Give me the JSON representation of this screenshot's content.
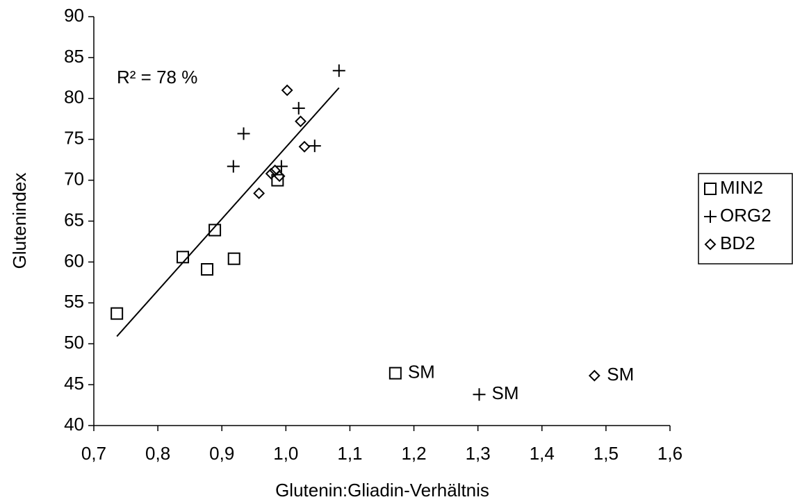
{
  "chart_data": {
    "type": "scatter",
    "xlabel": "Glutenin:Gliadin-Verhältnis",
    "ylabel": "Glutenindex",
    "annotation": "R² = 78 %",
    "xlim": [
      0.7,
      1.6
    ],
    "xticks": [
      {
        "value": 0.7,
        "label": "0,7"
      },
      {
        "value": 0.8,
        "label": "0,8"
      },
      {
        "value": 0.9,
        "label": "0,9"
      },
      {
        "value": 1.0,
        "label": "1,0"
      },
      {
        "value": 1.1,
        "label": "1,1"
      },
      {
        "value": 1.2,
        "label": "1,2"
      },
      {
        "value": 1.3,
        "label": "1,3"
      },
      {
        "value": 1.4,
        "label": "1,4"
      },
      {
        "value": 1.5,
        "label": "1,5"
      },
      {
        "value": 1.6,
        "label": "1,6"
      }
    ],
    "ylim": [
      40,
      90
    ],
    "yticks": [
      40,
      45,
      50,
      55,
      60,
      65,
      70,
      75,
      80,
      85,
      90
    ],
    "grid": false,
    "legend": "right",
    "series": [
      {
        "name": "MIN2",
        "color": "#000000",
        "marker": "square",
        "x": [
          0.736,
          0.839,
          0.877,
          0.889,
          0.919,
          0.987,
          1.171
        ],
        "values": [
          53.7,
          60.6,
          59.1,
          63.9,
          60.4,
          70.0,
          46.4
        ],
        "labels": [
          null,
          null,
          null,
          null,
          null,
          null,
          "SM"
        ]
      },
      {
        "name": "ORG2",
        "color": "#000000",
        "marker": "plus",
        "x": [
          0.918,
          0.934,
          0.993,
          1.02,
          1.045,
          1.083,
          1.302
        ],
        "values": [
          71.7,
          75.7,
          71.7,
          78.8,
          74.2,
          83.4,
          43.8
        ],
        "labels": [
          null,
          null,
          null,
          null,
          null,
          null,
          "SM"
        ]
      },
      {
        "name": "BD2",
        "color": "#000000",
        "marker": "diamond",
        "x": [
          0.958,
          0.977,
          0.983,
          0.99,
          1.002,
          1.023,
          1.029,
          1.482
        ],
        "values": [
          68.4,
          70.8,
          71.2,
          70.5,
          81.0,
          77.2,
          74.1,
          46.1
        ],
        "labels": [
          null,
          null,
          null,
          null,
          null,
          null,
          null,
          "SM"
        ]
      }
    ],
    "trendline": {
      "color": "#000000",
      "x": [
        0.736,
        1.083
      ],
      "values": [
        50.9,
        81.3
      ]
    }
  }
}
